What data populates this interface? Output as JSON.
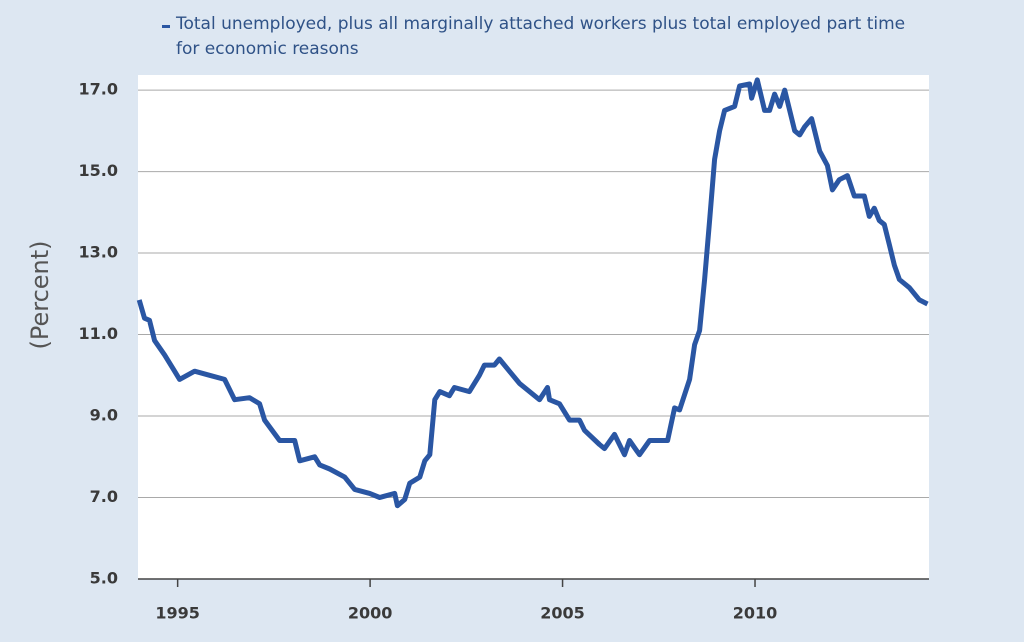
{
  "chart_data": {
    "type": "line",
    "y_label": "(Percent)",
    "x": [
      1994.0,
      1994.14,
      1994.27,
      1994.4,
      1994.66,
      1994.92,
      1995.05,
      1995.44,
      1995.83,
      1996.22,
      1996.48,
      1996.87,
      1997.13,
      1997.26,
      1997.65,
      1998.04,
      1998.17,
      1998.56,
      1998.69,
      1998.95,
      1999.34,
      1999.6,
      1999.99,
      2000.25,
      2000.64,
      2000.71,
      2000.9,
      2001.03,
      2001.29,
      2001.42,
      2001.55,
      2001.68,
      2001.81,
      2002.06,
      2002.19,
      2002.58,
      2002.84,
      2002.97,
      2003.23,
      2003.36,
      2003.62,
      2003.88,
      2004.14,
      2004.4,
      2004.61,
      2004.66,
      2004.92,
      2005.18,
      2005.44,
      2005.57,
      2005.96,
      2006.09,
      2006.35,
      2006.61,
      2006.74,
      2007.0,
      2007.26,
      2007.73,
      2007.91,
      2008.04,
      2008.3,
      2008.43,
      2008.56,
      2008.69,
      2008.82,
      2008.95,
      2009.08,
      2009.21,
      2009.47,
      2009.6,
      2009.86,
      2009.91,
      2010.06,
      2010.25,
      2010.38,
      2010.51,
      2010.64,
      2010.77,
      2011.03,
      2011.16,
      2011.29,
      2011.47,
      2011.68,
      2011.88,
      2012.01,
      2012.19,
      2012.4,
      2012.58,
      2012.84,
      2012.97,
      2013.1,
      2013.23,
      2013.36,
      2013.49,
      2013.62,
      2013.75,
      2014.01,
      2014.27,
      2014.48
    ],
    "series": [
      {
        "name": "Total unemployed, plus all marginally attached workers plus total employed part time for economic reasons",
        "color": "#2a56a3",
        "values": [
          11.85,
          11.4,
          11.35,
          10.85,
          10.5,
          10.1,
          9.9,
          10.1,
          10.0,
          9.9,
          9.4,
          9.45,
          9.3,
          8.9,
          8.4,
          8.4,
          7.9,
          8.0,
          7.8,
          7.7,
          7.5,
          7.2,
          7.1,
          7.0,
          7.1,
          6.8,
          6.95,
          7.35,
          7.5,
          7.9,
          8.05,
          9.4,
          9.6,
          9.5,
          9.7,
          9.6,
          10.0,
          10.25,
          10.25,
          10.4,
          10.1,
          9.8,
          9.6,
          9.4,
          9.7,
          9.4,
          9.3,
          8.9,
          8.9,
          8.65,
          8.3,
          8.2,
          8.55,
          8.05,
          8.4,
          8.05,
          8.4,
          8.4,
          9.2,
          9.15,
          9.9,
          10.75,
          11.1,
          12.35,
          13.8,
          15.3,
          16.0,
          16.5,
          16.6,
          17.1,
          17.15,
          16.8,
          17.25,
          16.5,
          16.5,
          16.9,
          16.6,
          17.0,
          16.0,
          15.9,
          16.1,
          16.3,
          15.5,
          15.15,
          14.55,
          14.8,
          14.9,
          14.4,
          14.4,
          13.9,
          14.1,
          13.8,
          13.7,
          13.2,
          12.7,
          12.35,
          12.15,
          11.85,
          11.75
        ]
      }
    ],
    "xlim": [
      1993.97,
      2014.52
    ],
    "xticks": [
      1995,
      2000,
      2005,
      2010
    ],
    "ylim": [
      5,
      17.37
    ],
    "yticks": [
      {
        "value": 5,
        "label": "5.0"
      },
      {
        "value": 7,
        "label": "7.0"
      },
      {
        "value": 9,
        "label": "9.0"
      },
      {
        "value": 11,
        "label": "11.0"
      },
      {
        "value": 13,
        "label": "13.0"
      },
      {
        "value": 15,
        "label": "15.0"
      },
      {
        "value": 17,
        "label": "17.0"
      }
    ],
    "grid": true
  }
}
